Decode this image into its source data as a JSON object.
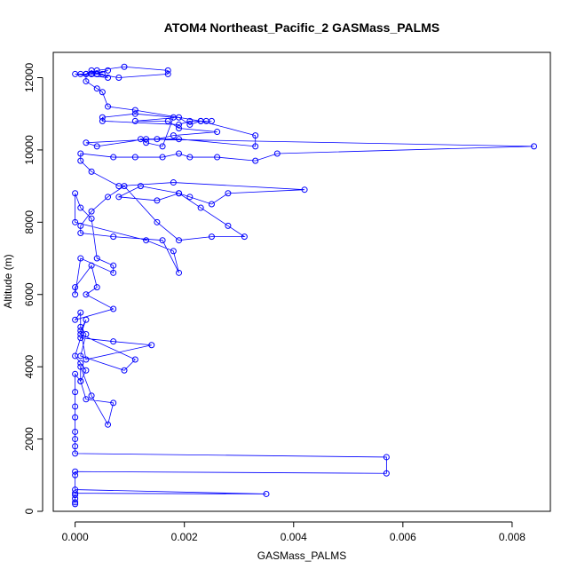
{
  "chart_data": {
    "type": "line",
    "title": "ATOM4 Northeast_Pacific_2 GASMass_PALMS",
    "xlabel": "GASMass_PALMS",
    "ylabel": "Altitude (m)",
    "xlim": [
      -0.0004,
      0.0087
    ],
    "ylim": [
      0,
      12700
    ],
    "xticks": [
      0,
      0.002,
      0.004,
      0.006,
      0.008
    ],
    "xtick_labels": [
      "0.000",
      "0.002",
      "0.004",
      "0.006",
      "0.008"
    ],
    "yticks": [
      0,
      2000,
      4000,
      6000,
      8000,
      10000,
      12000
    ],
    "ytick_labels": [
      "0",
      "2000",
      "4000",
      "6000",
      "8000",
      "10000",
      "12000"
    ],
    "grid": false,
    "marker": "open-circle",
    "color": "#0000ff",
    "series": [
      {
        "x": [
          0,
          0,
          0,
          0,
          0,
          0.0035,
          0,
          0,
          0,
          0.0057,
          0.0057,
          0,
          0,
          0,
          0,
          0,
          0,
          0,
          0,
          0.0001,
          0.0001,
          0.0003,
          0.0006,
          0.0007,
          0.0002,
          0.0001,
          0.0002,
          0.0001,
          0,
          0.0001,
          0.0007,
          0.0014,
          0.0002,
          0.0001,
          0.0002,
          0.0001,
          0.0011,
          0.0009,
          0.0001,
          0.0002,
          0.0001,
          0.0001,
          0,
          0.0007,
          0.0002,
          0.0004,
          0.0003,
          0,
          0,
          0.0001,
          0.0007,
          0.0007,
          0.0004,
          0.0003,
          0.0001,
          0,
          0,
          0.0013,
          0.0018,
          0.0019,
          0.0016,
          0.0007,
          0.0001,
          0.0001,
          0.0003,
          0.0006,
          0.0009,
          0.0015,
          0.0019,
          0.0025,
          0.0031,
          0.0028,
          0.0023,
          0.0019,
          0.0012,
          0.0008,
          0.0015,
          0.0019,
          0.0021,
          0.0025,
          0.0028,
          0.0042,
          0.0018,
          0.0008,
          0.0003,
          0.0001,
          0.0001,
          0.0007,
          0.0011,
          0.0016,
          0.0019,
          0.0021,
          0.0026,
          0.0033,
          0.0037,
          0.0084,
          0.0013,
          0.0004,
          0.0002,
          0.0015,
          0.0018,
          0.0026,
          0.0019,
          0.0017,
          0.0011,
          0.0019,
          0.0021,
          0.0023,
          0.0033,
          0.0033,
          0.0019,
          0.0012,
          0.0013,
          0.0016,
          0.0018,
          0.0011,
          0.0005,
          0.0005,
          0.0019,
          0.0021,
          0.0025,
          0.0024,
          0.0023,
          0.0011,
          0.0006,
          0.0005,
          0.0004,
          0.0002,
          0.0002,
          0.0004,
          0.0009,
          0.0017,
          0.0017,
          0.0008,
          0.0004,
          0.0004,
          0.0003,
          0.0002,
          0.0001,
          0.0005,
          0.0006,
          0,
          0.0002,
          0.0003,
          0.0006,
          0.0004,
          0.0003
        ],
        "y": [
          200,
          250,
          350,
          450,
          500,
          480,
          600,
          1000,
          1100,
          1050,
          1500,
          1600,
          1800,
          2000,
          2200,
          2600,
          2900,
          3300,
          3800,
          3600,
          4000,
          3200,
          2400,
          3000,
          3100,
          3600,
          3900,
          4100,
          4300,
          4800,
          4700,
          4600,
          4200,
          5000,
          5300,
          4900,
          4200,
          3900,
          4300,
          4900,
          5100,
          5500,
          5300,
          5600,
          6000,
          6200,
          6800,
          6200,
          6000,
          7000,
          6600,
          6800,
          7000,
          8100,
          8400,
          8800,
          8000,
          7500,
          7200,
          6600,
          7500,
          7600,
          7700,
          7900,
          8300,
          8700,
          9000,
          8000,
          7500,
          7600,
          7600,
          7900,
          8400,
          8800,
          9000,
          8700,
          8600,
          8800,
          8700,
          8500,
          8800,
          8900,
          9100,
          9000,
          9400,
          9700,
          9900,
          9800,
          9800,
          9800,
          9900,
          9800,
          9800,
          9700,
          9900,
          10100,
          10300,
          10100,
          10200,
          10300,
          10400,
          10500,
          10600,
          10800,
          10800,
          10900,
          10700,
          10800,
          10400,
          10100,
          10300,
          10300,
          10200,
          10100,
          10900,
          11000,
          10900,
          10800,
          10700,
          10800,
          10800,
          10800,
          10800,
          11100,
          11200,
          11600,
          11700,
          11900,
          12100,
          12200,
          12300,
          12200,
          12100,
          12000,
          12100,
          12100,
          12200,
          12100,
          12100,
          12100,
          12000,
          12100,
          12100,
          12100,
          12200,
          12100,
          12100
        ]
      }
    ]
  }
}
